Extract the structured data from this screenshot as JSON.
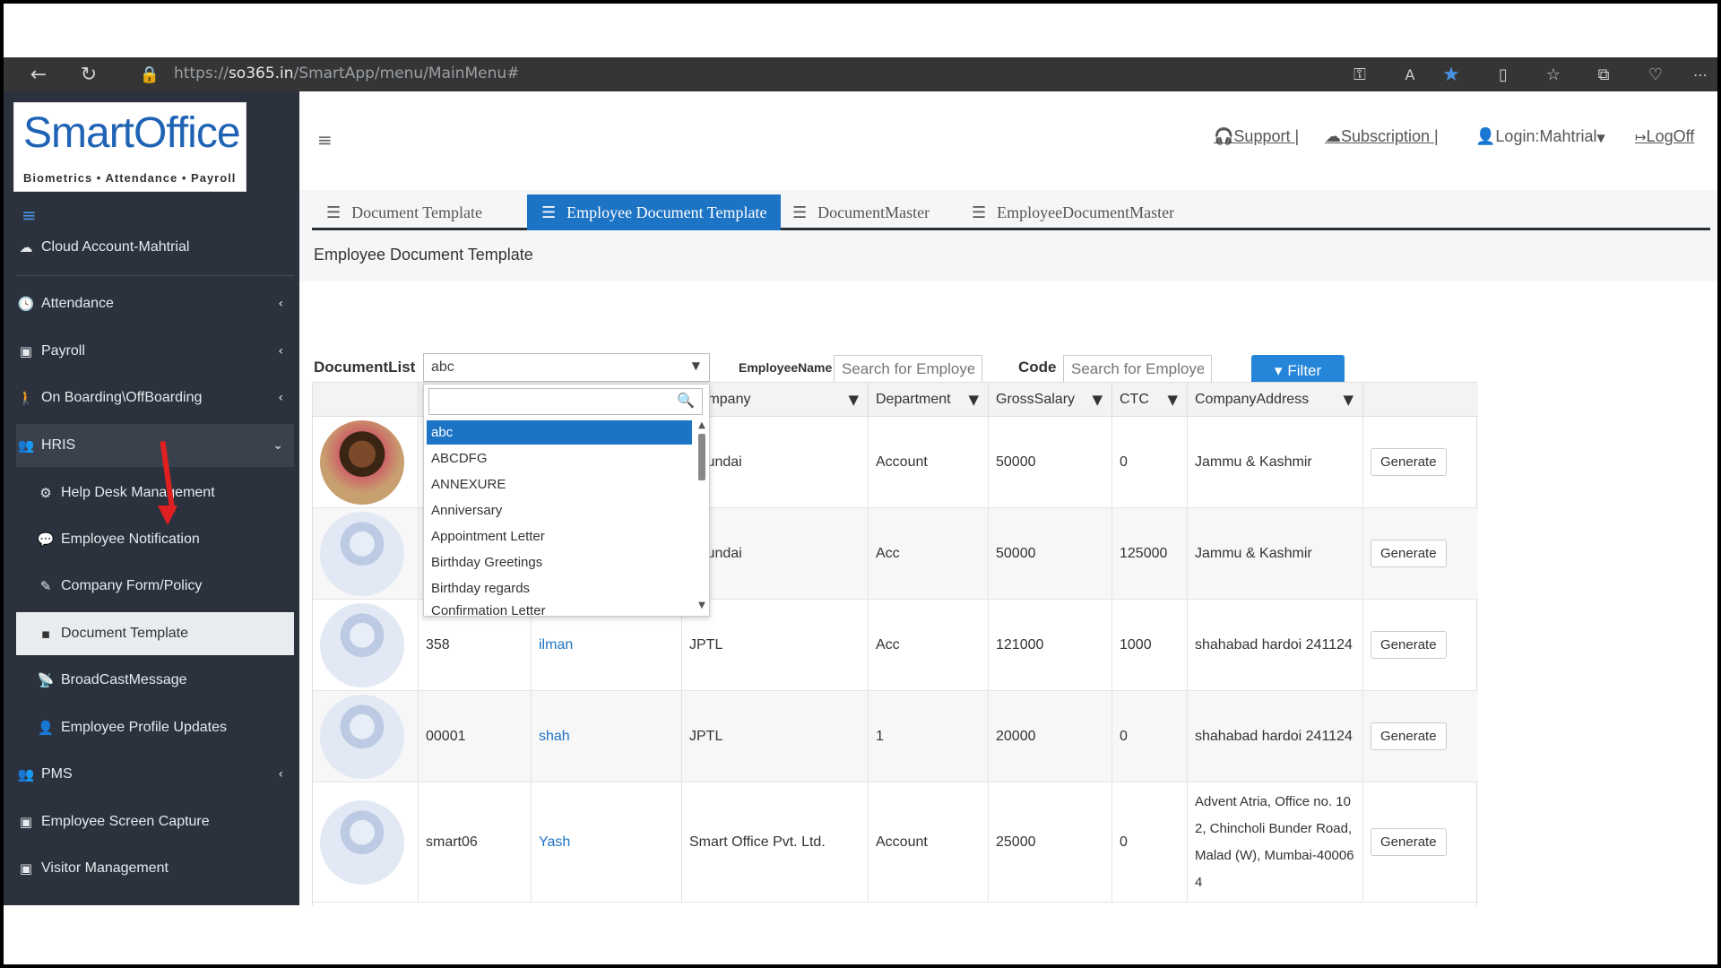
{
  "browser": {
    "url_prefix": "https://",
    "url_host": "so365.in",
    "url_path": "/SmartApp/menu/MainMenu#"
  },
  "logo": {
    "name": "SmartOffice",
    "tagline": "Biometrics • Attendance • Payroll"
  },
  "sidebar": {
    "account": "Cloud Account-Mahtrial",
    "items": [
      {
        "label": "Attendance"
      },
      {
        "label": "Payroll"
      },
      {
        "label": "On Boarding\\OffBoarding"
      },
      {
        "label": "HRIS"
      },
      {
        "label": "Help Desk Management"
      },
      {
        "label": "Employee Notification"
      },
      {
        "label": "Company Form/Policy"
      },
      {
        "label": "Document Template"
      },
      {
        "label": "BroadCastMessage"
      },
      {
        "label": "Employee Profile Updates"
      },
      {
        "label": "PMS"
      },
      {
        "label": "Employee Screen Capture"
      },
      {
        "label": "Visitor Management"
      }
    ]
  },
  "topnav": {
    "support": "Support |",
    "subscription": "Subscription |",
    "login": "Login:Mahtrial",
    "logoff": "LogOff"
  },
  "tabs": [
    "Document Template",
    "Employee Document Template",
    "DocumentMaster",
    "EmployeeDocumentMaster"
  ],
  "page_title": "Employee Document Template",
  "filters": {
    "doclist_label": "DocumentList",
    "doclist_value": "abc",
    "name_label": "EmployeeName",
    "name_placeholder": "Search for Employee",
    "code_label": "Code",
    "code_placeholder": "Search for Employee",
    "filter_button": "Filter"
  },
  "dropdown": {
    "options": [
      "abc",
      "ABCDFG",
      "ANNEXURE",
      "Anniversary",
      "Appointment Letter",
      "Birthday Greetings",
      "Birthday regards",
      "Confirmation Letter"
    ]
  },
  "table": {
    "columns": [
      "Company",
      "Department",
      "GrossSalary",
      "CTC",
      "CompanyAddress"
    ],
    "rows": [
      {
        "code": "",
        "name": "",
        "company": "Hyundai",
        "department": "Account",
        "gross": "50000",
        "ctc": "0",
        "address": "Jammu & Kashmir",
        "action": "Generate"
      },
      {
        "code": "",
        "name": "",
        "company": "Hyundai",
        "department": "Acc",
        "gross": "50000",
        "ctc": "125000",
        "address": "Jammu & Kashmir",
        "action": "Generate"
      },
      {
        "code": "358",
        "name": "ilman",
        "company": "JPTL",
        "department": "Acc",
        "gross": "121000",
        "ctc": "1000",
        "address": "shahabad hardoi 241124",
        "action": "Generate"
      },
      {
        "code": "00001",
        "name": "shah",
        "company": "JPTL",
        "department": "1",
        "gross": "20000",
        "ctc": "0",
        "address": "shahabad hardoi 241124",
        "action": "Generate"
      },
      {
        "code": "smart06",
        "name": "Yash",
        "company": "Smart Office Pvt. Ltd.",
        "department": "Account",
        "gross": "25000",
        "ctc": "0",
        "address": "Advent Atria, Office no. 102, Chincholi Bunder Road, Malad (W), Mumbai-400064",
        "action": "Generate"
      }
    ]
  }
}
